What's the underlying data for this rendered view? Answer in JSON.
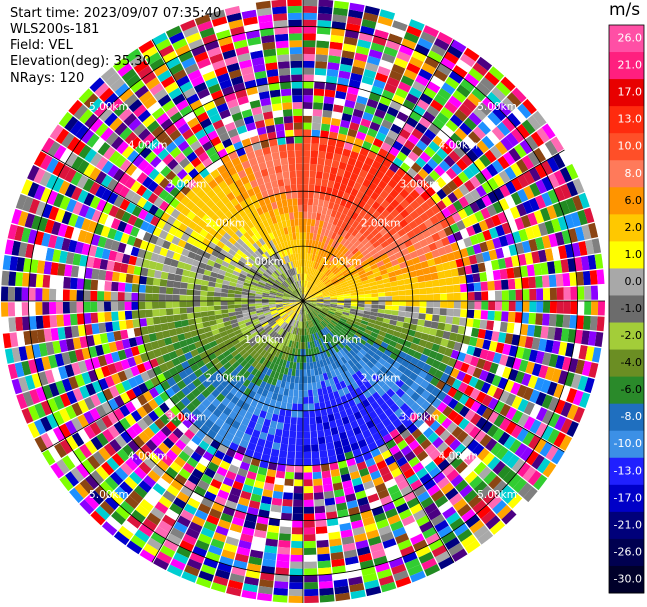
{
  "header": {
    "start_time": "Start time: 2023/09/07 07:35:40",
    "instrument": "WLS200s-181",
    "field": "Field: VEL",
    "elevation": "Elevation(deg): 35.30",
    "nrays": "NRays: 120"
  },
  "chart_data": {
    "type": "heatmap",
    "projection": "polar",
    "field": "VEL",
    "range_rings_km": [
      1.0,
      2.0,
      3.0,
      4.0,
      5.0
    ],
    "range_ring_labels": [
      "1.00km",
      "2.00km",
      "3.00km",
      "4.00km",
      "5.00km"
    ],
    "max_range_km": 5.5,
    "n_rays": 120,
    "colorbar": {
      "unit": "m/s",
      "tick_labels": [
        "26.0",
        "21.0",
        "17.0",
        "13.0",
        "10.0",
        "8.0",
        "6.0",
        "2.0",
        "1.0",
        "0.0",
        "-1.0",
        "-2.0",
        "-4.0",
        "-6.0",
        "-8.0",
        "-10.0",
        "-13.0",
        "-17.0",
        "-21.0",
        "-26.0",
        "-30.0"
      ],
      "bins": [
        {
          "low": 26,
          "high": 30,
          "color": "#ff4fa5"
        },
        {
          "low": 21,
          "high": 26,
          "color": "#ff1f7f"
        },
        {
          "low": 17,
          "high": 21,
          "color": "#e80000"
        },
        {
          "low": 13,
          "high": 17,
          "color": "#ff2b0e"
        },
        {
          "low": 10,
          "high": 13,
          "color": "#ff4f28"
        },
        {
          "low": 8,
          "high": 10,
          "color": "#ff7a5a"
        },
        {
          "low": 6,
          "high": 8,
          "color": "#ff9400"
        },
        {
          "low": 2,
          "high": 6,
          "color": "#ffc800"
        },
        {
          "low": 1,
          "high": 2,
          "color": "#ffff00"
        },
        {
          "low": 0,
          "high": 1,
          "color": "#a8a8a8"
        },
        {
          "low": -1,
          "high": 0,
          "color": "#6c6c6c"
        },
        {
          "low": -2,
          "high": -1,
          "color": "#a3cd39"
        },
        {
          "low": -4,
          "high": -2,
          "color": "#6b8e23"
        },
        {
          "low": -6,
          "high": -4,
          "color": "#2a8a2a"
        },
        {
          "low": -8,
          "high": -6,
          "color": "#1f6fbf"
        },
        {
          "low": -10,
          "high": -8,
          "color": "#3c90e6"
        },
        {
          "low": -13,
          "high": -10,
          "color": "#2020ff"
        },
        {
          "low": -17,
          "high": -13,
          "color": "#0000c8"
        },
        {
          "low": -21,
          "high": -17,
          "color": "#00007a"
        },
        {
          "low": -26,
          "high": -21,
          "color": "#000050"
        },
        {
          "low": -30,
          "high": -26,
          "color": "#00002a"
        }
      ]
    },
    "valid_range_km": 3.1,
    "noise_palette": [
      "#ff00ff",
      "#8b00ff",
      "#0000cd",
      "#000080",
      "#ff1493",
      "#ff0000",
      "#ffff00",
      "#ffa500",
      "#32cd32",
      "#228b22",
      "#1e90ff",
      "#00ced1",
      "#808080",
      "#a9a9a9",
      "#ffffff",
      "#8b4513",
      "#ff69b4",
      "#4b0082",
      "#7fff00",
      "#dc143c"
    ]
  }
}
